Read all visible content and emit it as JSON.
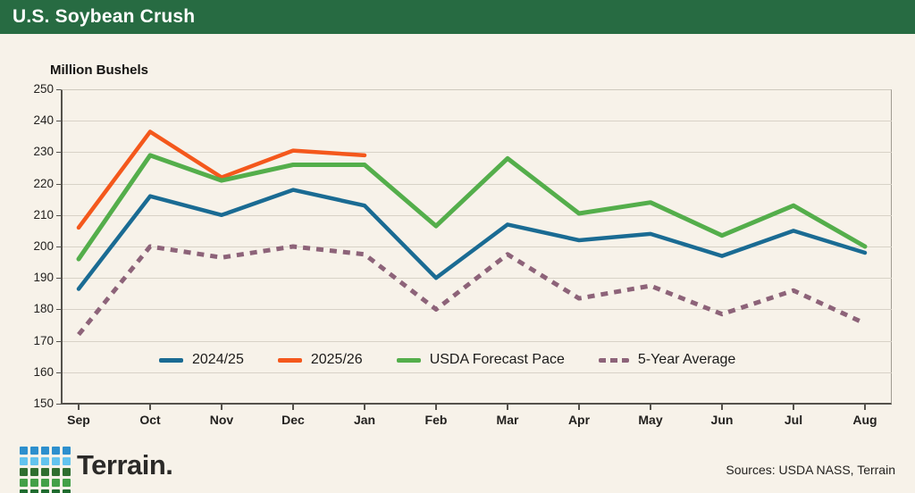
{
  "header": {
    "title": "U.S. Soybean Crush"
  },
  "colors": {
    "header_bg": "#276B42",
    "background": "#F7F2E9",
    "gridline": "#D8D2C7",
    "axis": "#55524C",
    "series_blue": "#1A6B93",
    "series_orange": "#F4581C",
    "series_green": "#54AE4B",
    "series_mauve": "#8D6379",
    "text": "#1C1B1A"
  },
  "chart_data": {
    "type": "line",
    "title": "U.S. Soybean Crush",
    "axis_title": "Million Bushels",
    "categories": [
      "Sep",
      "Oct",
      "Nov",
      "Dec",
      "Jan",
      "Feb",
      "Mar",
      "Apr",
      "May",
      "Jun",
      "Jul",
      "Aug"
    ],
    "ylim": [
      150,
      250
    ],
    "yticks": [
      150,
      160,
      170,
      180,
      190,
      200,
      210,
      220,
      230,
      240,
      250
    ],
    "grid": "horizontal",
    "legend_position": "bottom-inside",
    "series": [
      {
        "name": "2024/25",
        "color": "#1A6B93",
        "dashed": false,
        "width": 4.5,
        "values": [
          186.5,
          216,
          210,
          218,
          213,
          190,
          207,
          202,
          204,
          197,
          205,
          198
        ]
      },
      {
        "name": "2025/26",
        "color": "#F4581C",
        "dashed": false,
        "width": 4.5,
        "values": [
          206,
          236.5,
          222,
          230.5,
          229,
          null,
          null,
          null,
          null,
          null,
          null,
          null
        ]
      },
      {
        "name": "USDA Forecast Pace",
        "color": "#54AE4B",
        "dashed": false,
        "width": 5,
        "values": [
          196,
          229,
          221,
          226,
          226,
          206.5,
          228,
          210.5,
          214,
          203.5,
          213,
          200
        ]
      },
      {
        "name": "5-Year Average",
        "color": "#8D6379",
        "dashed": true,
        "width": 5,
        "values": [
          172,
          200,
          196.5,
          200,
          197.5,
          180,
          197.5,
          183.5,
          187.5,
          178.5,
          186,
          175.5
        ]
      }
    ]
  },
  "footer": {
    "logo_text": "Terrain.",
    "logo_row_colors": [
      "#2D8FCD",
      "#63C3EE",
      "#2F6E2F",
      "#43A047",
      "#1F6B2E"
    ],
    "sources": "Sources: USDA NASS, Terrain"
  }
}
